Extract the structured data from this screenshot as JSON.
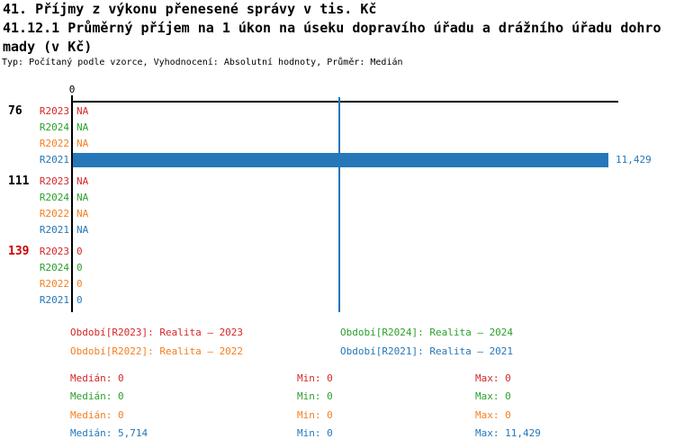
{
  "header": {
    "title_line1": "41. Příjmy z výkonu přenesené správy v tis. Kč",
    "title_line2": "41.12.1 Průměrný příjem na 1 úkon na úseku dopravího úřadu a drážního úřadu dohro",
    "title_line3": "mady (v Kč)",
    "subtitle": "Typ: Počítaný podle vzorce, Vyhodnocení: Absolutní hodnoty, Průměr: Medián"
  },
  "colors": {
    "axis": "#000000",
    "group_label_normal": "#000000",
    "group_label_alert": "#cc0000",
    "median_line": "#2577b9"
  },
  "chart_data": {
    "type": "bar",
    "orientation": "horizontal",
    "title": "41.12.1 Průměrný příjem na 1 úkon na úseku dopravího úřadu a drážního úřadu dohromady (v Kč)",
    "axis": {
      "tick_labels": [
        "0"
      ],
      "x_min": 0,
      "x_max": 11640
    },
    "median_line_value": 5714,
    "series_colors": {
      "R2023": "#d62728",
      "R2024": "#2ca02c",
      "R2022": "#f57e20",
      "R2021": "#2577b9"
    },
    "groups": [
      {
        "label": "76",
        "label_color": "#000000",
        "bars": [
          {
            "series": "R2023",
            "display": "NA",
            "value": null
          },
          {
            "series": "R2024",
            "display": "NA",
            "value": null
          },
          {
            "series": "R2022",
            "display": "NA",
            "value": null
          },
          {
            "series": "R2021",
            "display": "11,429",
            "value": 11429
          }
        ]
      },
      {
        "label": "111",
        "label_color": "#000000",
        "bars": [
          {
            "series": "R2023",
            "display": "NA",
            "value": null
          },
          {
            "series": "R2024",
            "display": "NA",
            "value": null
          },
          {
            "series": "R2022",
            "display": "NA",
            "value": null
          },
          {
            "series": "R2021",
            "display": "NA",
            "value": null
          }
        ]
      },
      {
        "label": "139",
        "label_color": "#cc0000",
        "bars": [
          {
            "series": "R2023",
            "display": "0",
            "value": 0
          },
          {
            "series": "R2024",
            "display": "0",
            "value": 0
          },
          {
            "series": "R2022",
            "display": "0",
            "value": 0
          },
          {
            "series": "R2021",
            "display": "0",
            "value": 0
          }
        ]
      }
    ],
    "stats": [
      {
        "series": "Realita – 2023",
        "median": 0,
        "min": 0,
        "max": 0
      },
      {
        "series": "Realita – 2024",
        "median": 0,
        "min": 0,
        "max": 0
      },
      {
        "series": "Realita – 2022",
        "median": 0,
        "min": 0,
        "max": 0
      },
      {
        "series": "Realita – 2021",
        "median": 5714,
        "min": 0,
        "max": 11429
      }
    ]
  },
  "legend": {
    "items": [
      {
        "series": "R2023",
        "text": "Období[R2023]: Realita – 2023"
      },
      {
        "series": "R2024",
        "text": "Období[R2024]: Realita – 2024"
      },
      {
        "series": "R2022",
        "text": "Období[R2022]: Realita – 2022"
      },
      {
        "series": "R2021",
        "text": "Období[R2021]: Realita – 2021"
      }
    ]
  },
  "stats_table": {
    "rows": [
      {
        "series": "R2023",
        "cells": [
          "Medián: 0",
          "Min: 0",
          "Max: 0"
        ]
      },
      {
        "series": "R2024",
        "cells": [
          "Medián: 0",
          "Min: 0",
          "Max: 0"
        ]
      },
      {
        "series": "R2022",
        "cells": [
          "Medián: 0",
          "Min: 0",
          "Max: 0"
        ]
      },
      {
        "series": "R2021",
        "cells": [
          "Medián: 5,714",
          "Min: 0",
          "Max: 11,429"
        ]
      }
    ]
  }
}
